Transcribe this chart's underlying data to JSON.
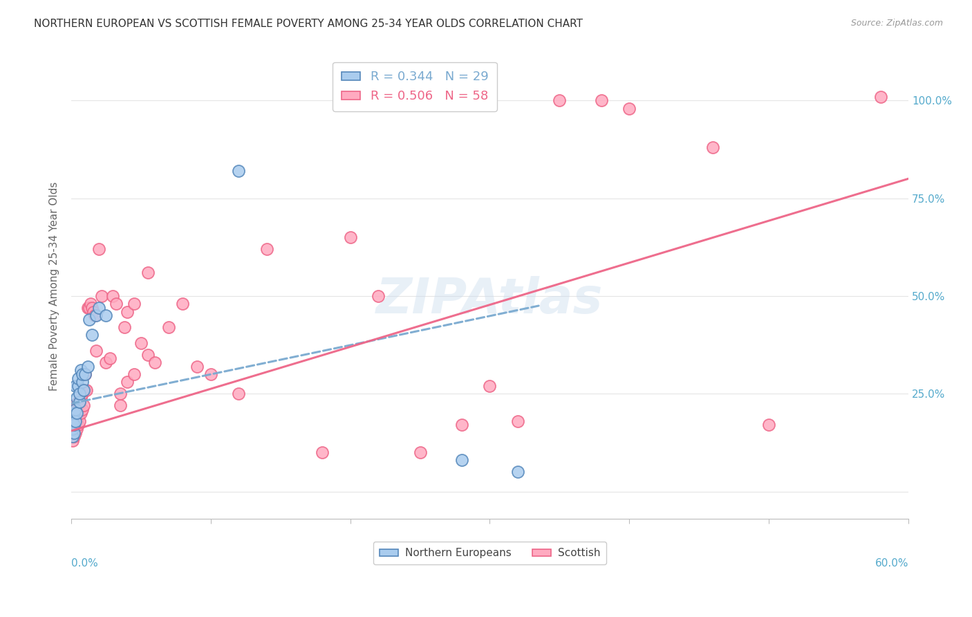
{
  "title": "NORTHERN EUROPEAN VS SCOTTISH FEMALE POVERTY AMONG 25-34 YEAR OLDS CORRELATION CHART",
  "source": "Source: ZipAtlas.com",
  "ylabel": "Female Poverty Among 25-34 Year Olds",
  "watermark": "ZIPAtlas",
  "legend_blue_label": "Northern Europeans",
  "legend_pink_label": "Scottish",
  "legend_blue_r": "0.344",
  "legend_blue_n": "29",
  "legend_pink_r": "0.506",
  "legend_pink_n": "58",
  "blue_color": "#AACCEE",
  "pink_color": "#FFAAC0",
  "blue_edge_color": "#5588BB",
  "pink_edge_color": "#EE6688",
  "blue_line_color": "#7AAAD0",
  "pink_line_color": "#EE6688",
  "axis_label_color": "#55AACC",
  "title_color": "#333333",
  "grid_color": "#E5E5E5",
  "background_color": "#FFFFFF",
  "xmin": 0.0,
  "xmax": 0.6,
  "ymin": -0.07,
  "ymax": 1.12,
  "blue_line_x0": 0.0,
  "blue_line_y0": 0.225,
  "blue_line_x1": 0.335,
  "blue_line_y1": 0.475,
  "pink_line_x0": 0.0,
  "pink_line_y0": 0.155,
  "pink_line_x1": 0.6,
  "pink_line_y1": 0.8,
  "blue_scatter_x": [
    0.001,
    0.001,
    0.001,
    0.002,
    0.002,
    0.002,
    0.003,
    0.003,
    0.003,
    0.004,
    0.004,
    0.005,
    0.005,
    0.006,
    0.006,
    0.007,
    0.008,
    0.008,
    0.009,
    0.01,
    0.012,
    0.013,
    0.015,
    0.018,
    0.02,
    0.025,
    0.12,
    0.28,
    0.32
  ],
  "blue_scatter_y": [
    0.14,
    0.16,
    0.18,
    0.15,
    0.17,
    0.2,
    0.18,
    0.21,
    0.27,
    0.2,
    0.24,
    0.27,
    0.29,
    0.23,
    0.25,
    0.31,
    0.28,
    0.3,
    0.26,
    0.3,
    0.32,
    0.44,
    0.4,
    0.45,
    0.47,
    0.45,
    0.82,
    0.08,
    0.05
  ],
  "pink_scatter_x": [
    0.001,
    0.001,
    0.001,
    0.001,
    0.002,
    0.002,
    0.002,
    0.002,
    0.002,
    0.003,
    0.003,
    0.003,
    0.003,
    0.004,
    0.004,
    0.004,
    0.004,
    0.005,
    0.005,
    0.005,
    0.005,
    0.006,
    0.006,
    0.007,
    0.007,
    0.008,
    0.008,
    0.009,
    0.01,
    0.01,
    0.011,
    0.012,
    0.013,
    0.014,
    0.015,
    0.016,
    0.017,
    0.018,
    0.02,
    0.022,
    0.025,
    0.028,
    0.03,
    0.032,
    0.035,
    0.038,
    0.04,
    0.045,
    0.05,
    0.055,
    0.3,
    0.32,
    0.35,
    0.38,
    0.4,
    0.46,
    0.5,
    0.58
  ],
  "pink_scatter_y": [
    0.13,
    0.15,
    0.17,
    0.2,
    0.14,
    0.16,
    0.18,
    0.2,
    0.22,
    0.15,
    0.17,
    0.19,
    0.21,
    0.16,
    0.18,
    0.2,
    0.22,
    0.17,
    0.19,
    0.21,
    0.23,
    0.18,
    0.22,
    0.2,
    0.24,
    0.21,
    0.25,
    0.22,
    0.26,
    0.3,
    0.26,
    0.47,
    0.47,
    0.48,
    0.47,
    0.46,
    0.45,
    0.36,
    0.62,
    0.5,
    0.33,
    0.34,
    0.5,
    0.48,
    0.22,
    0.42,
    0.46,
    0.48,
    0.38,
    0.56,
    0.27,
    0.18,
    1.0,
    1.0,
    0.98,
    0.88,
    0.17,
    1.01
  ],
  "pink_outlier_x": [
    0.035,
    0.04,
    0.045,
    0.055,
    0.06,
    0.07,
    0.08,
    0.09,
    0.1,
    0.12,
    0.14,
    0.18,
    0.2,
    0.22,
    0.25,
    0.28
  ],
  "pink_outlier_y": [
    0.25,
    0.28,
    0.3,
    0.35,
    0.33,
    0.42,
    0.48,
    0.32,
    0.3,
    0.25,
    0.62,
    0.1,
    0.65,
    0.5,
    0.1,
    0.17
  ]
}
